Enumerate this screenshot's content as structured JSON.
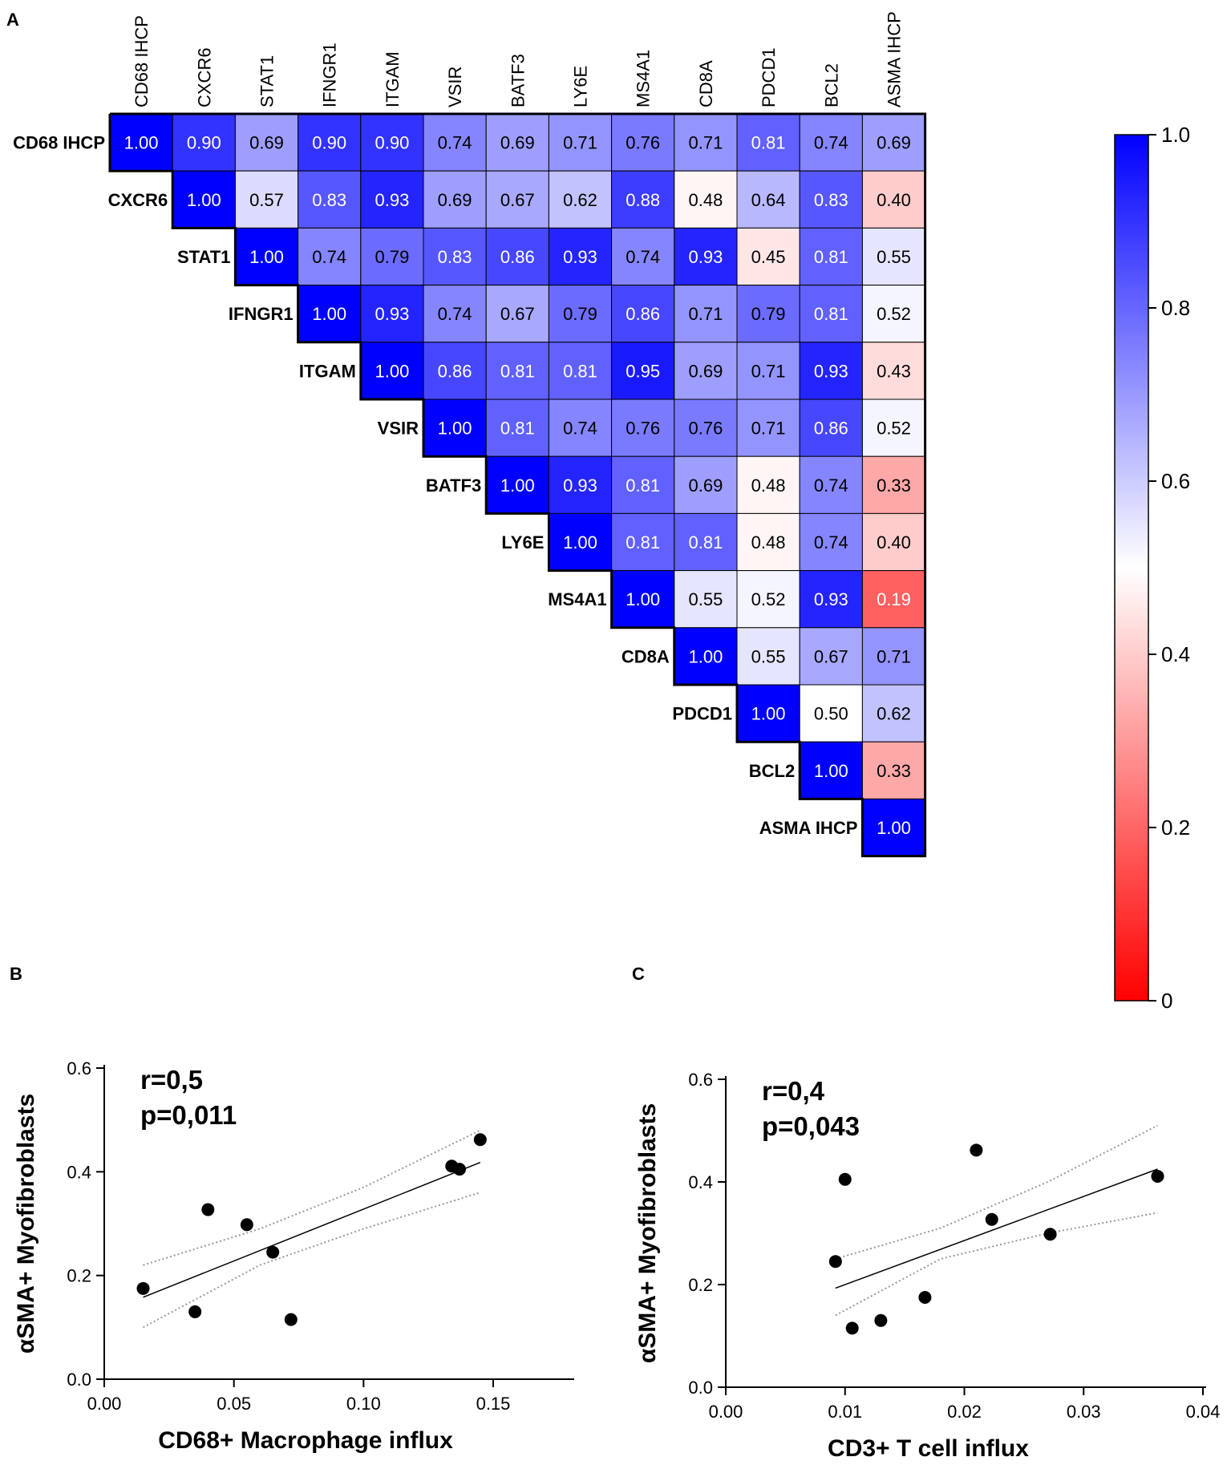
{
  "panels": {
    "a": "A",
    "b": "B",
    "c": "C"
  },
  "colors": {
    "low": "#ff0000",
    "mid": "#ffffff",
    "high": "#0000ff",
    "point": "#000000",
    "ci": "#999999"
  },
  "chart_data": [
    {
      "type": "heatmap",
      "title": "",
      "labels": [
        "CD68 IHCP",
        "CXCR6",
        "STAT1",
        "IFNGR1",
        "ITGAM",
        "VSIR",
        "BATF3",
        "LY6E",
        "MS4A1",
        "CD8A",
        "PDCD1",
        "BCL2",
        "ASMA IHCP"
      ],
      "matrix": [
        [
          "1.00",
          "0.90",
          "0.69",
          "0.90",
          "0.90",
          "0.74",
          "0.69",
          "0.71",
          "0.76",
          "0.71",
          "0.81",
          "0.74",
          "0.69"
        ],
        [
          "1.00",
          "0.57",
          "0.83",
          "0.93",
          "0.69",
          "0.67",
          "0.62",
          "0.88",
          "0.48",
          "0.64",
          "0.83",
          "0.40"
        ],
        [
          "1.00",
          "0.74",
          "0.79",
          "0.83",
          "0.86",
          "0.93",
          "0.74",
          "0.93",
          "0.45",
          "0.81",
          "0.55"
        ],
        [
          "1.00",
          "0.93",
          "0.74",
          "0.67",
          "0.79",
          "0.86",
          "0.71",
          "0.79",
          "0.81",
          "0.52"
        ],
        [
          "1.00",
          "0.86",
          "0.81",
          "0.81",
          "0.95",
          "0.69",
          "0.71",
          "0.93",
          "0.43"
        ],
        [
          "1.00",
          "0.81",
          "0.74",
          "0.76",
          "0.76",
          "0.71",
          "0.86",
          "0.52"
        ],
        [
          "1.00",
          "0.93",
          "0.81",
          "0.69",
          "0.48",
          "0.74",
          "0.33"
        ],
        [
          "1.00",
          "0.81",
          "0.81",
          "0.48",
          "0.74",
          "0.40"
        ],
        [
          "1.00",
          "0.55",
          "0.52",
          "0.93",
          "0.19"
        ],
        [
          "1.00",
          "0.55",
          "0.67",
          "0.71"
        ],
        [
          "1.00",
          "0.50",
          "0.62"
        ],
        [
          "1.00",
          "0.33"
        ],
        [
          "1.00"
        ]
      ],
      "colorbar": {
        "min": 0,
        "max": 1,
        "mid": 0.5,
        "ticks": [
          "0",
          "0.2",
          "0.4",
          "0.6",
          "0.8",
          "1.0"
        ]
      }
    },
    {
      "type": "scatter",
      "xlabel": "CD68+ Macrophage influx",
      "ylabel": "αSMA+ Myofibroblasts",
      "xlim": [
        0,
        0.18
      ],
      "ylim": [
        0,
        0.6
      ],
      "xticks": [
        "0.00",
        "0.05",
        "0.10",
        "0.15"
      ],
      "yticks": [
        "0.0",
        "0.2",
        "0.4",
        "0.6"
      ],
      "points": [
        [
          0.015,
          0.175
        ],
        [
          0.035,
          0.13
        ],
        [
          0.04,
          0.327
        ],
        [
          0.055,
          0.298
        ],
        [
          0.065,
          0.245
        ],
        [
          0.072,
          0.115
        ],
        [
          0.134,
          0.411
        ],
        [
          0.137,
          0.405
        ],
        [
          0.145,
          0.462
        ]
      ],
      "fit": {
        "x": [
          0.015,
          0.145
        ],
        "y": [
          0.158,
          0.418
        ]
      },
      "ci_upper": [
        [
          0.015,
          0.22
        ],
        [
          0.06,
          0.29
        ],
        [
          0.1,
          0.37
        ],
        [
          0.145,
          0.48
        ]
      ],
      "ci_lower": [
        [
          0.015,
          0.1
        ],
        [
          0.06,
          0.22
        ],
        [
          0.1,
          0.29
        ],
        [
          0.145,
          0.36
        ]
      ],
      "r_text": "r=0,5",
      "p_text": "p=0,011"
    },
    {
      "type": "scatter",
      "xlabel": "CD3+ T cell influx",
      "ylabel": "αSMA+ Myofibroblasts",
      "xlim": [
        0,
        0.04
      ],
      "ylim": [
        0,
        0.6
      ],
      "xticks": [
        "0.00",
        "0.01",
        "0.02",
        "0.03",
        "0.04"
      ],
      "yticks": [
        "0.0",
        "0.2",
        "0.4",
        "0.6"
      ],
      "points": [
        [
          0.0092,
          0.245
        ],
        [
          0.01,
          0.405
        ],
        [
          0.0106,
          0.115
        ],
        [
          0.013,
          0.13
        ],
        [
          0.0167,
          0.175
        ],
        [
          0.021,
          0.462
        ],
        [
          0.0223,
          0.327
        ],
        [
          0.0272,
          0.298
        ],
        [
          0.0362,
          0.411
        ]
      ],
      "fit": {
        "x": [
          0.0092,
          0.0362
        ],
        "y": [
          0.193,
          0.425
        ]
      },
      "ci_upper": [
        [
          0.0092,
          0.25
        ],
        [
          0.018,
          0.31
        ],
        [
          0.027,
          0.4
        ],
        [
          0.0362,
          0.51
        ]
      ],
      "ci_lower": [
        [
          0.0092,
          0.14
        ],
        [
          0.018,
          0.25
        ],
        [
          0.027,
          0.3
        ],
        [
          0.0362,
          0.34
        ]
      ],
      "r_text": "r=0,4",
      "p_text": "p=0,043"
    }
  ]
}
